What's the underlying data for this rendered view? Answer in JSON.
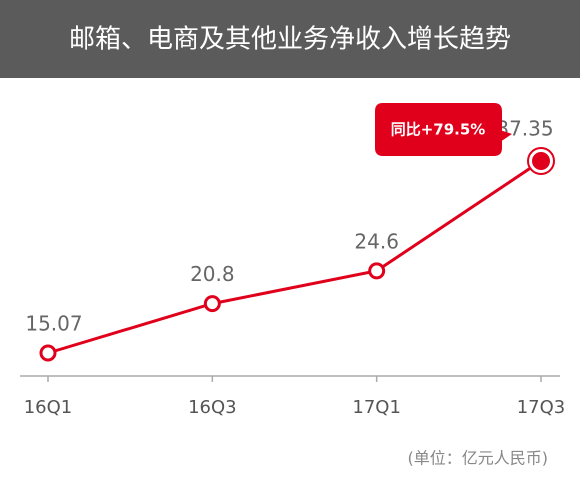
{
  "chart_data": {
    "type": "line",
    "title": "邮箱、电商及其他业务净收入增长趋势",
    "categories": [
      "16Q1",
      "16Q3",
      "17Q1",
      "17Q3"
    ],
    "values": [
      15.07,
      20.8,
      24.6,
      37.35
    ],
    "color": "#e0001b",
    "annotation": "同比+79.5%",
    "unit_note": "(单位：亿元人民币)"
  }
}
